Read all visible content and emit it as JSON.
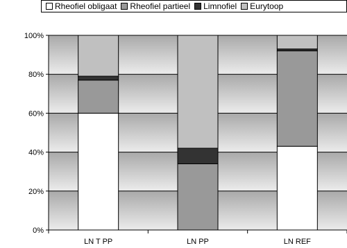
{
  "chart_data": {
    "type": "bar",
    "stacked": true,
    "percent": true,
    "categories": [
      "LN T PP",
      "LN PP",
      "LN REF"
    ],
    "series": [
      {
        "name": "Rheofiel obligaat",
        "color": "#ffffff",
        "values": [
          60,
          0,
          43
        ]
      },
      {
        "name": "Rheofiel partieel",
        "color": "#999999",
        "values": [
          17,
          34,
          49
        ]
      },
      {
        "name": "Limnofiel",
        "color": "#333333",
        "values": [
          2,
          8,
          1
        ]
      },
      {
        "name": "Eurytoop",
        "color": "#c0c0c0",
        "values": [
          21,
          58,
          7
        ]
      }
    ],
    "yticks": [
      "0%",
      "20%",
      "40%",
      "60%",
      "80%",
      "100%"
    ],
    "ylim": [
      0,
      100
    ],
    "legend_position": "top"
  }
}
